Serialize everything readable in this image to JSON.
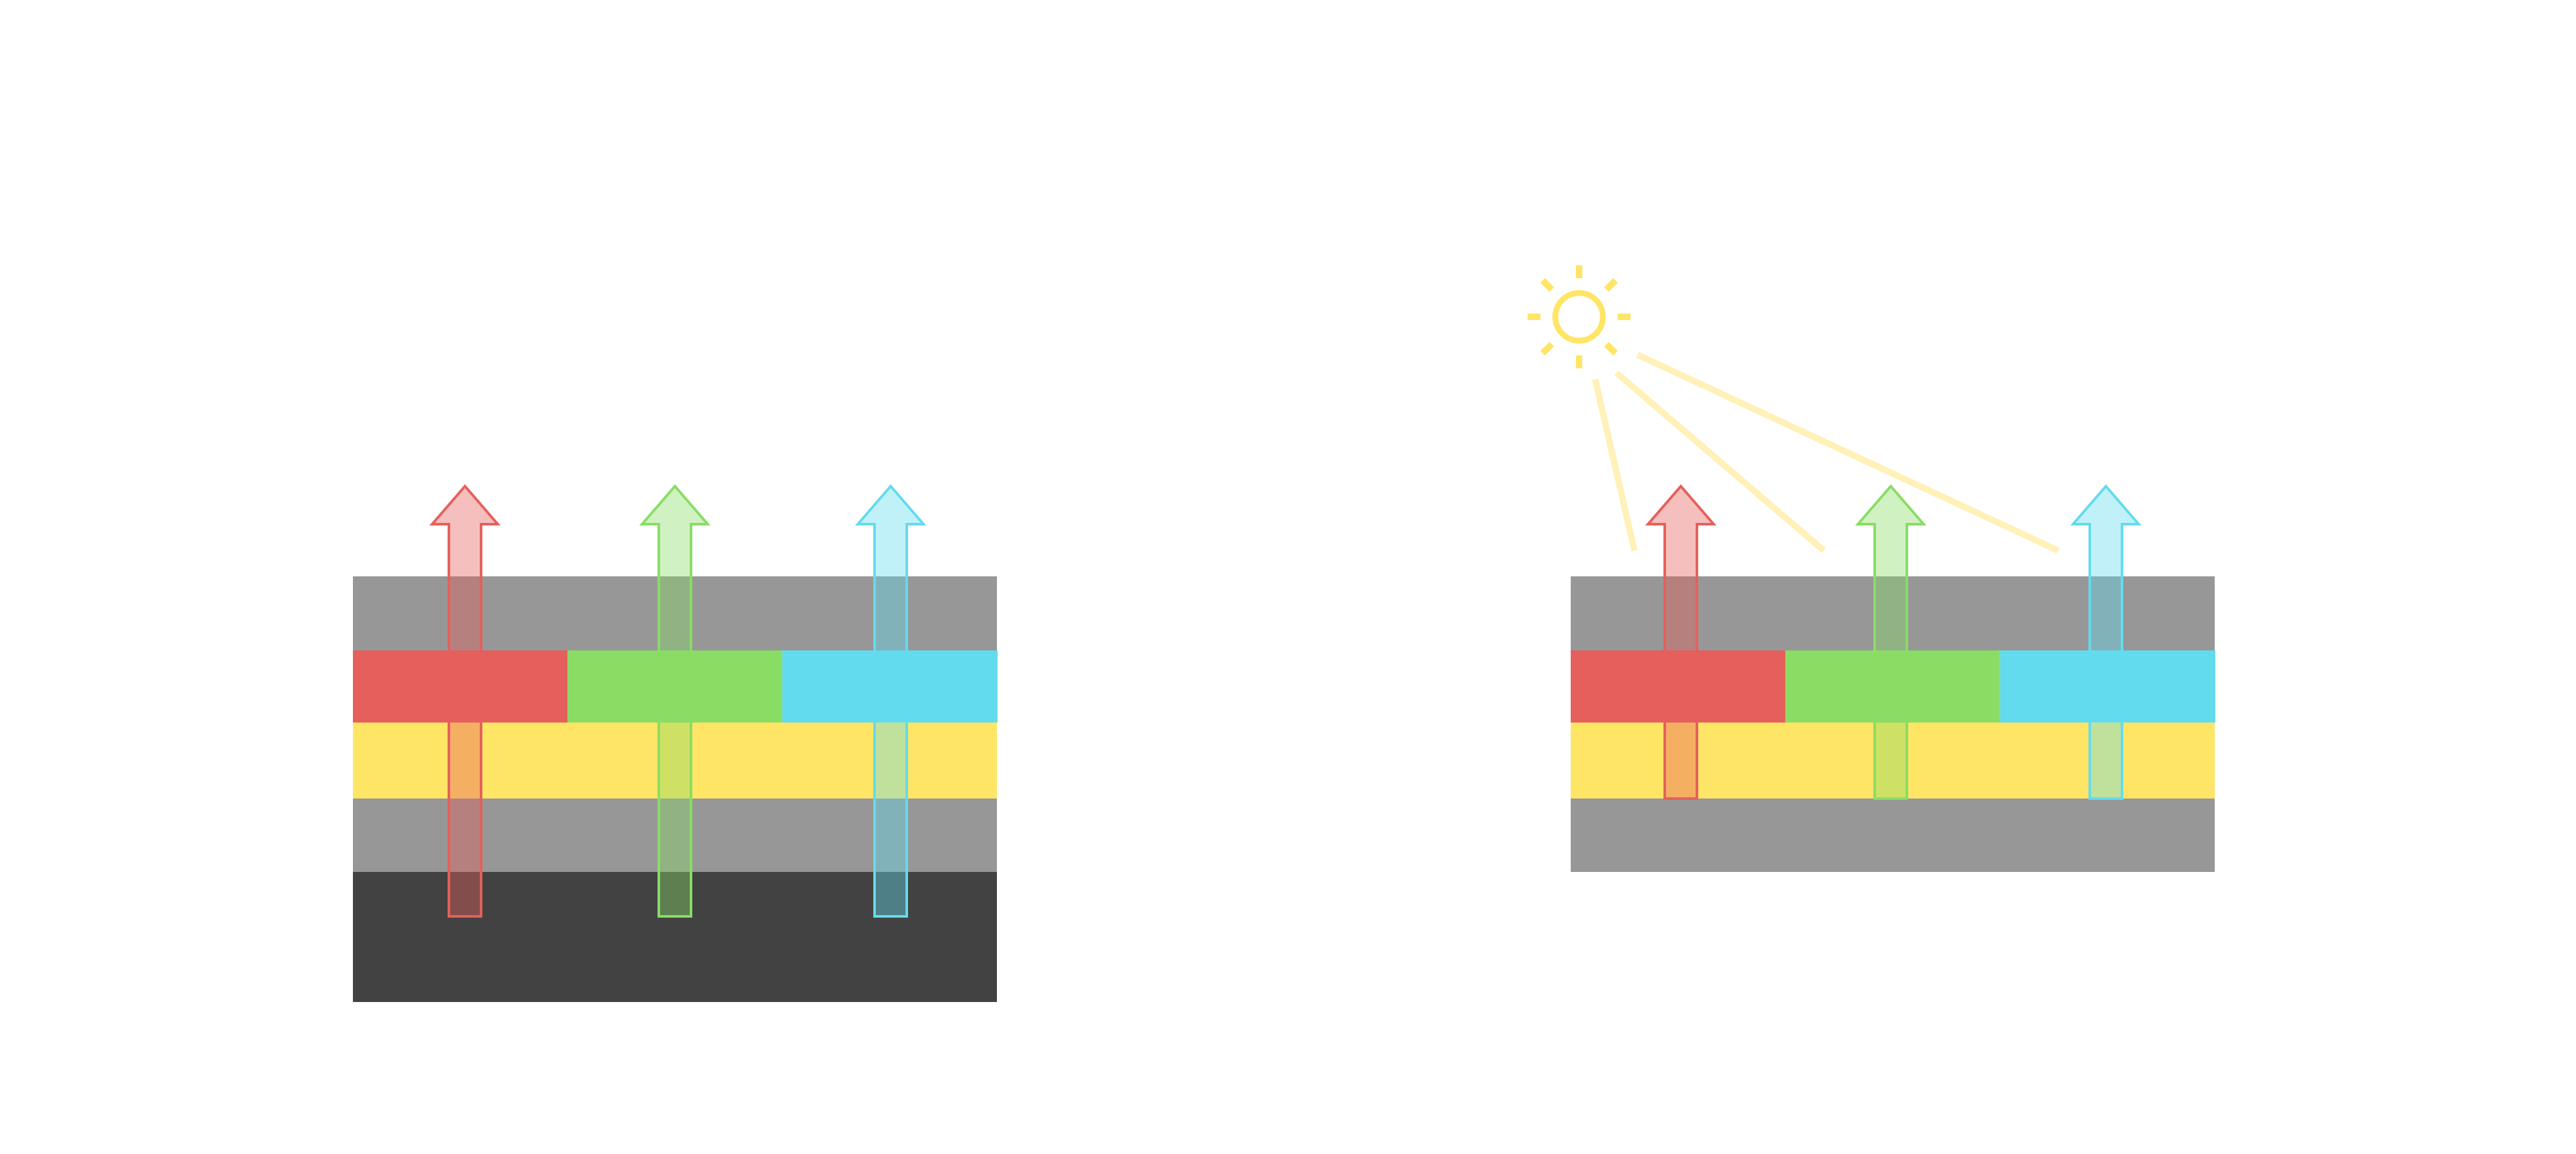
{
  "colors": {
    "gray_layer": "#979797",
    "dark_layer": "#424242",
    "red": "#e5605c",
    "green": "#89dd64",
    "cyan": "#63dbee",
    "yellow": "#fee566",
    "light_ray": "#fff1b8"
  },
  "left_stack": {
    "layers": [
      "gray",
      "red-green-cyan",
      "yellow",
      "gray",
      "dark"
    ],
    "arrows": [
      "red",
      "green",
      "cyan"
    ]
  },
  "right_stack": {
    "layers": [
      "gray",
      "red-green-cyan",
      "yellow",
      "gray"
    ],
    "arrows": [
      "red",
      "green",
      "cyan"
    ],
    "light_source": "sun-icon"
  }
}
